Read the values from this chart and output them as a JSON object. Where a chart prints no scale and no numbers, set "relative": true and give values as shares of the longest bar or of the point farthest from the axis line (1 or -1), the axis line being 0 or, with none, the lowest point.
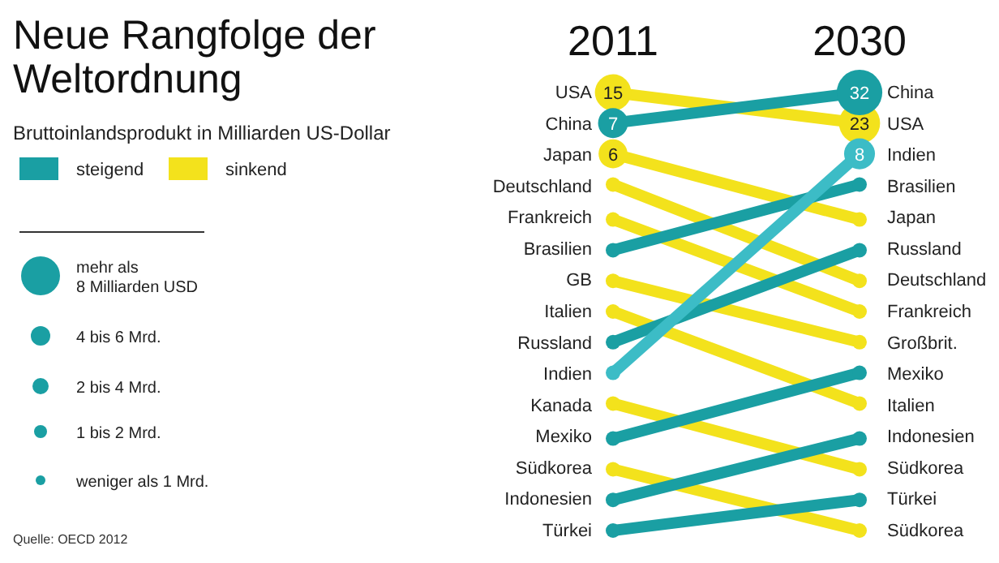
{
  "chart_data": {
    "type": "line",
    "title": "Neue Rangfolge der Weltordnung",
    "subtitle": "Bruttoinlandsprodukt in Milliarden US-Dollar",
    "categories": [
      "2011",
      "2030"
    ],
    "relative": true,
    "y_categories": [
      "USA",
      "China",
      "Japan",
      "Deutschland",
      "Frankreich",
      "Brasilien",
      "GB",
      "Italien",
      "Russland",
      "Indien",
      "Kanada",
      "Mexiko",
      "Südkorea",
      "Indonesien",
      "Türkei"
    ],
    "y2_categories": [
      "China",
      "USA",
      "Indien",
      "Brasilien",
      "Japan",
      "Russland",
      "Deutschland",
      "Frankreich",
      "Großbrit.",
      "Mexiko",
      "Italien",
      "Indonesien",
      "Südkorea",
      "Türkei",
      "Südkorea"
    ],
    "series": [
      {
        "color": "#f3e21c",
        "values": [
          1,
          0.93
        ]
      },
      {
        "color": "#1a9fa3",
        "values": [
          0.93,
          1
        ]
      },
      {
        "color": "#f3e21c",
        "values": [
          0.86,
          0.71
        ]
      },
      {
        "color": "#f3e21c",
        "values": [
          0.79,
          0.57
        ]
      },
      {
        "color": "#f3e21c",
        "values": [
          0.71,
          0.5
        ]
      },
      {
        "color": "#1a9fa3",
        "values": [
          0.64,
          0.79
        ]
      },
      {
        "color": "#f3e21c",
        "values": [
          0.57,
          0.43
        ]
      },
      {
        "color": "#f3e21c",
        "values": [
          0.5,
          0.29
        ]
      },
      {
        "color": "#1a9fa3",
        "values": [
          0.43,
          0.64
        ]
      },
      {
        "color": "#3cbcc6",
        "values": [
          0.36,
          0.86
        ]
      },
      {
        "color": "#f3e21c",
        "values": [
          0.29,
          0.14
        ]
      },
      {
        "color": "#1a9fa3",
        "values": [
          0.21,
          0.36
        ]
      },
      {
        "color": "#f3e21c",
        "values": [
          0.14,
          0
        ]
      },
      {
        "color": "#1a9fa3",
        "values": [
          0.07,
          0.21
        ]
      },
      {
        "color": "#1a9fa3",
        "values": [
          0,
          0.07
        ]
      }
    ],
    "marker": "circle",
    "annotations": [
      "steigend",
      "sinkend",
      "mehr als\n8 Milliarden USD",
      "4 bis 6 Mrd.",
      "2 bis 4 Mrd.",
      "1 bis 2 Mrd.",
      "weniger als 1 Mrd.",
      "Quelle: OECD 2012",
      {
        "text": "15",
        "x": "2011",
        "y": 1
      },
      {
        "text": "7",
        "x": "2011",
        "y": 0.93
      },
      {
        "text": "6",
        "x": "2011",
        "y": 0.86
      },
      {
        "text": "32",
        "x": "2030",
        "y": 1
      },
      {
        "text": "23",
        "x": "2030",
        "y": 0.93
      },
      {
        "text": "8",
        "x": "2030",
        "y": 0.86
      }
    ]
  }
}
